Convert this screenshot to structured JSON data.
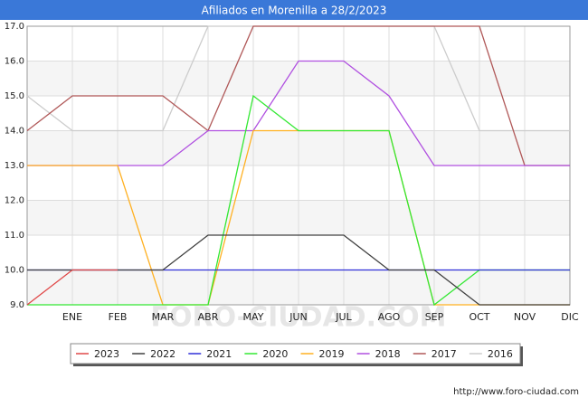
{
  "chart_data": {
    "type": "line",
    "title": "Afiliados en Morenilla a 28/2/2023",
    "watermark": "FORO-CIUDAD.COM",
    "source": "http://www.foro-ciudad.com",
    "categories": [
      null,
      "ENE",
      "FEB",
      "MAR",
      "ABR",
      "MAY",
      "JUN",
      "JUL",
      "AGO",
      "SEP",
      "OCT",
      "NOV",
      "DIC"
    ],
    "ylim": [
      9,
      17
    ],
    "yticks": [
      {
        "value": 9,
        "label": "9.0"
      },
      {
        "value": 10,
        "label": "10.0"
      },
      {
        "value": 11,
        "label": "11.0"
      },
      {
        "value": 12,
        "label": "12.0"
      },
      {
        "value": 13,
        "label": "13.0"
      },
      {
        "value": 14,
        "label": "14.0"
      },
      {
        "value": 15,
        "label": "15.0"
      },
      {
        "value": 16,
        "label": "16.0"
      },
      {
        "value": 17,
        "label": "17.0"
      }
    ],
    "grid": true,
    "legend": "bottom",
    "series": [
      {
        "name": "2023",
        "color": "#e04848",
        "values": [
          9,
          10,
          10,
          null,
          null,
          null,
          null,
          null,
          null,
          null,
          null,
          null,
          null
        ]
      },
      {
        "name": "2022",
        "color": "#404040",
        "values": [
          10,
          10,
          10,
          10,
          11,
          11,
          11,
          11,
          10,
          10,
          9,
          9,
          9
        ]
      },
      {
        "name": "2021",
        "color": "#3030d8",
        "values": [
          10,
          10,
          10,
          10,
          10,
          10,
          10,
          10,
          10,
          10,
          10,
          10,
          10
        ]
      },
      {
        "name": "2020",
        "color": "#33e833",
        "values": [
          9,
          9,
          9,
          9,
          9,
          15,
          14,
          14,
          14,
          9,
          10,
          10,
          10
        ]
      },
      {
        "name": "2019",
        "color": "#ffb020",
        "values": [
          13,
          13,
          13,
          9,
          9,
          14,
          14,
          14,
          14,
          9,
          9,
          9,
          9
        ]
      },
      {
        "name": "2018",
        "color": "#b050e0",
        "values": [
          13,
          13,
          13,
          13,
          14,
          14,
          16,
          16,
          15,
          13,
          13,
          13,
          13
        ]
      },
      {
        "name": "2017",
        "color": "#b05858",
        "values": [
          14,
          15,
          15,
          15,
          14,
          17,
          17,
          17,
          17,
          17,
          17,
          13,
          13
        ]
      },
      {
        "name": "2016",
        "color": "#cccccc",
        "values": [
          15,
          14,
          14,
          14,
          17,
          17,
          17,
          17,
          17,
          17,
          14,
          14,
          14
        ]
      }
    ]
  }
}
